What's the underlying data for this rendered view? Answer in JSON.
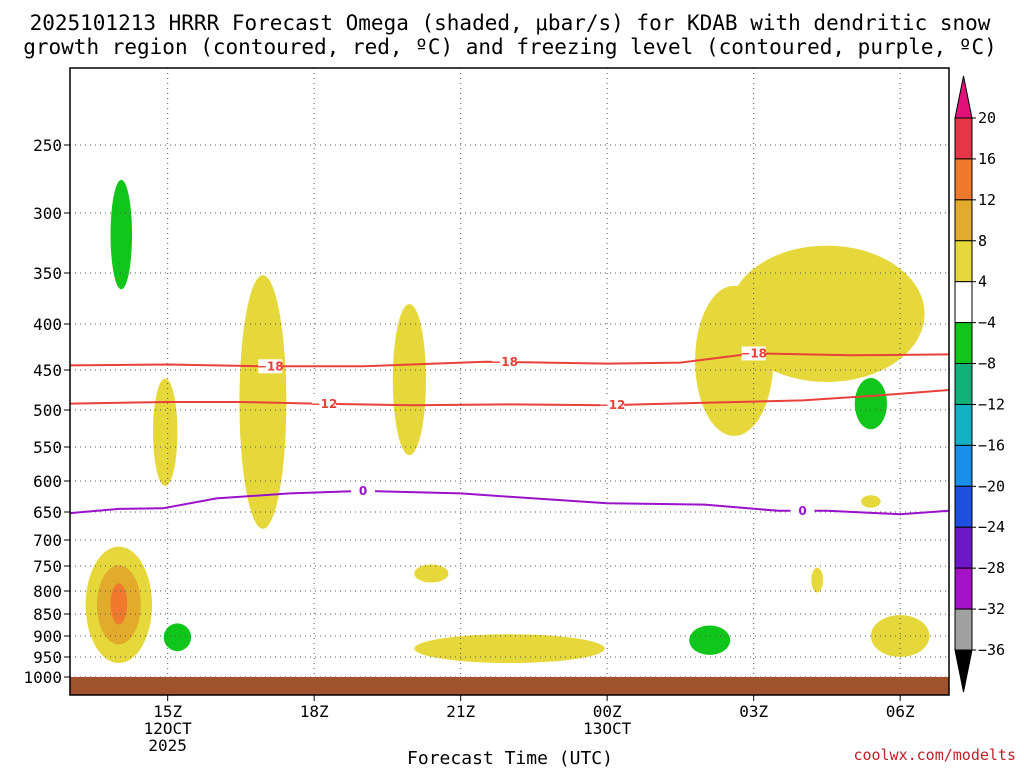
{
  "chart_data": {
    "type": "contour",
    "title_line1": "2025101213 HRRR Forecast Omega (shaded, μbar/s) for KDAB with dendritic snow",
    "title_line2": "growth region (contoured, red, ºC) and freezing level (contoured, purple, ºC)",
    "xlabel": "Forecast Time (UTC)",
    "credit": "coolwx.com/modelts",
    "x_range_hours": [
      13,
      31
    ],
    "x_ticks": [
      {
        "hour": 15,
        "label": "15Z",
        "sub1": "12OCT",
        "sub2": "2025"
      },
      {
        "hour": 18,
        "label": "18Z",
        "sub1": "",
        "sub2": ""
      },
      {
        "hour": 21,
        "label": "21Z",
        "sub1": "",
        "sub2": ""
      },
      {
        "hour": 24,
        "label": "00Z",
        "sub1": "13OCT",
        "sub2": ""
      },
      {
        "hour": 27,
        "label": "03Z",
        "sub1": "",
        "sub2": ""
      },
      {
        "hour": 30,
        "label": "06Z",
        "sub1": "",
        "sub2": ""
      }
    ],
    "y_ticks": [
      {
        "p": 250,
        "label": "250"
      },
      {
        "p": 300,
        "label": "300"
      },
      {
        "p": 350,
        "label": "350"
      },
      {
        "p": 400,
        "label": "400"
      },
      {
        "p": 450,
        "label": "450"
      },
      {
        "p": 500,
        "label": "500"
      },
      {
        "p": 550,
        "label": "550"
      },
      {
        "p": 600,
        "label": "600"
      },
      {
        "p": 650,
        "label": "650"
      },
      {
        "p": 700,
        "label": "700"
      },
      {
        "p": 750,
        "label": "750"
      },
      {
        "p": 800,
        "label": "800"
      },
      {
        "p": 850,
        "label": "850"
      },
      {
        "p": 900,
        "label": "900"
      },
      {
        "p": 950,
        "label": "950"
      },
      {
        "p": 1000,
        "label": "1000"
      }
    ],
    "colorbar": {
      "levels": [
        20,
        16,
        12,
        8,
        4,
        -4,
        -8,
        -12,
        -16,
        -20,
        -24,
        -28,
        -32,
        -36
      ],
      "labels": [
        "20",
        "16",
        "12",
        "8",
        "4",
        "−4",
        "−8",
        "−12",
        "−16",
        "−20",
        "−24",
        "−28",
        "−32",
        "−36"
      ],
      "colors": [
        "#e8354a",
        "#ef7a2e",
        "#e2ab2c",
        "#e6d83a",
        "#ffffff",
        "#11c61a",
        "#10b27a",
        "#13b0c3",
        "#1a8fe9",
        "#1d4fe0",
        "#6d17c8",
        "#a312c6",
        "#a0a0a0"
      ],
      "top_arrow_color": "#e0127a",
      "bottom_arrow_color": "#000000"
    },
    "contour_lines": [
      {
        "name": "dgz-minus18",
        "color": "#e8413a",
        "label": "−18",
        "points": [
          [
            13,
            445
          ],
          [
            15,
            444
          ],
          [
            17,
            446
          ],
          [
            19,
            446
          ],
          [
            21.5,
            441
          ],
          [
            24,
            443
          ],
          [
            25.5,
            442
          ],
          [
            27,
            432
          ],
          [
            29,
            434
          ],
          [
            31,
            433
          ]
        ],
        "label_hours": [
          17.1,
          21.9,
          27
        ]
      },
      {
        "name": "dgz-minus12",
        "color": "#e8413a",
        "label": "−12",
        "points": [
          [
            13,
            492
          ],
          [
            15,
            490
          ],
          [
            16.5,
            490
          ],
          [
            18,
            492
          ],
          [
            20,
            494
          ],
          [
            22,
            493
          ],
          [
            24,
            494
          ],
          [
            26,
            491
          ],
          [
            28,
            488
          ],
          [
            29.5,
            482
          ],
          [
            31,
            475
          ]
        ],
        "label_hours": [
          18.2,
          24.1
        ]
      },
      {
        "name": "freezing-level",
        "color": "#9a11c9",
        "label": "0",
        "points": [
          [
            13,
            652
          ],
          [
            14,
            645
          ],
          [
            14.9,
            644
          ],
          [
            16,
            628
          ],
          [
            17.5,
            620
          ],
          [
            19,
            616
          ],
          [
            21,
            620
          ],
          [
            22.5,
            628
          ],
          [
            24,
            636
          ],
          [
            26,
            638
          ],
          [
            27.5,
            648
          ],
          [
            28.5,
            648
          ],
          [
            30,
            654
          ],
          [
            31,
            648
          ]
        ],
        "label_hours": [
          19,
          28
        ]
      }
    ],
    "shaded_regions": [
      {
        "name": "green-300",
        "value": -8,
        "color": "#11c61a",
        "center": [
          14.05,
          318
        ],
        "dx": 0.22,
        "dp": 48
      },
      {
        "name": "yellow-early-low",
        "value": 4,
        "color": "#e6d83a",
        "center": [
          14.0,
          830
        ],
        "dx": 0.68,
        "dp": 135
      },
      {
        "name": "orange-early-low",
        "value": 8,
        "color": "#e2ab2c",
        "center": [
          14.0,
          830
        ],
        "dx": 0.45,
        "dp": 90
      },
      {
        "name": "darkorange-early-low",
        "value": 12,
        "color": "#ef7a2e",
        "center": [
          14.0,
          828
        ],
        "dx": 0.17,
        "dp": 46
      },
      {
        "name": "green-900-early",
        "value": -8,
        "color": "#11c61a",
        "center": [
          15.2,
          903
        ],
        "dx": 0.28,
        "dp": 33
      },
      {
        "name": "yellow-500",
        "value": 4,
        "color": "#e6d83a",
        "center": [
          14.95,
          530
        ],
        "dx": 0.25,
        "dp": 78
      },
      {
        "name": "yellow-17z",
        "value": 4,
        "color": "#e6d83a",
        "center": [
          16.95,
          490
        ],
        "dx": 0.48,
        "dp": 190
      },
      {
        "name": "yellow-20z",
        "value": 4,
        "color": "#e6d83a",
        "center": [
          19.95,
          462
        ],
        "dx": 0.34,
        "dp": 100
      },
      {
        "name": "yellow-760",
        "value": 4,
        "color": "#e6d83a",
        "center": [
          20.4,
          765
        ],
        "dx": 0.35,
        "dp": 18
      },
      {
        "name": "yellow-930",
        "value": 4,
        "color": "#e6d83a",
        "center": [
          22.0,
          930
        ],
        "dx": 1.95,
        "dp": 35
      },
      {
        "name": "green-900-late",
        "value": -8,
        "color": "#11c61a",
        "center": [
          26.1,
          910
        ],
        "dx": 0.42,
        "dp": 35
      },
      {
        "name": "yellow-late-upper",
        "value": 4,
        "color": "#e6d83a",
        "center": [
          28.5,
          390
        ],
        "dx": 2.0,
        "dp": 75
      },
      {
        "name": "yellow-late-column",
        "value": 4,
        "color": "#e6d83a",
        "center": [
          26.6,
          440
        ],
        "dx": 0.8,
        "dp": 95
      },
      {
        "name": "green-500-late",
        "value": -8,
        "color": "#11c61a",
        "center": [
          29.4,
          492
        ],
        "dx": 0.33,
        "dp": 34
      },
      {
        "name": "yellow-630",
        "value": 4,
        "color": "#e6d83a",
        "center": [
          29.4,
          633
        ],
        "dx": 0.2,
        "dp": 10
      },
      {
        "name": "yellow-770",
        "value": 4,
        "color": "#e6d83a",
        "center": [
          28.3,
          778
        ],
        "dx": 0.12,
        "dp": 25
      },
      {
        "name": "yellow-900-late",
        "value": 4,
        "color": "#e6d83a",
        "center": [
          30.0,
          900
        ],
        "dx": 0.6,
        "dp": 50
      }
    ],
    "ground_color": "#a0522d"
  }
}
